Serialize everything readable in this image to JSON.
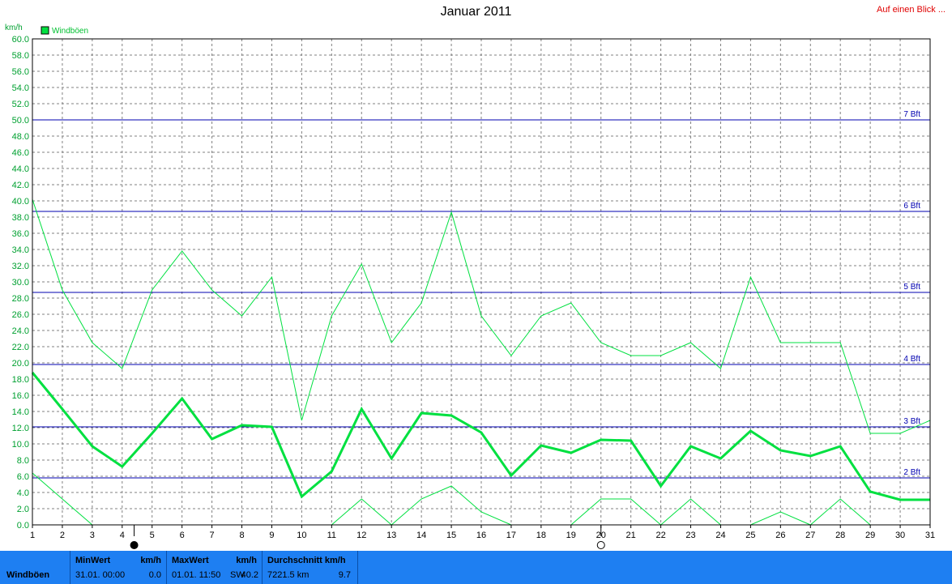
{
  "title": "Januar 2011",
  "quick_link": "Auf einen Blick ...",
  "colors": {
    "series": "#00e040",
    "beaufort": "#0000b0",
    "grid": "#808080",
    "footer_bg": "#1e7ff2"
  },
  "chart_data": {
    "type": "line",
    "title": "Januar 2011",
    "ylabel": "km/h",
    "xlim": [
      1,
      31
    ],
    "ylim": [
      0,
      60
    ],
    "yticks": [
      "0.0",
      "2.0",
      "4.0",
      "6.0",
      "8.0",
      "10.0",
      "12.0",
      "14.0",
      "16.0",
      "18.0",
      "20.0",
      "22.0",
      "24.0",
      "26.0",
      "28.0",
      "30.0",
      "32.0",
      "34.0",
      "36.0",
      "38.0",
      "40.0",
      "42.0",
      "44.0",
      "46.0",
      "48.0",
      "50.0",
      "52.0",
      "54.0",
      "56.0",
      "58.0",
      "60.0"
    ],
    "xticks": [
      "1",
      "2",
      "3",
      "4",
      "5",
      "6",
      "7",
      "8",
      "9",
      "10",
      "11",
      "12",
      "13",
      "14",
      "15",
      "16",
      "17",
      "18",
      "19",
      "20",
      "21",
      "22",
      "23",
      "24",
      "25",
      "26",
      "27",
      "28",
      "29",
      "30",
      "31"
    ],
    "legend": {
      "label": "Windböen",
      "placement": "top-left"
    },
    "x": [
      1,
      2,
      3,
      4,
      5,
      6,
      7,
      8,
      9,
      10,
      11,
      12,
      13,
      14,
      15,
      16,
      17,
      18,
      19,
      20,
      21,
      22,
      23,
      24,
      25,
      26,
      27,
      28,
      29,
      30,
      31
    ],
    "series": [
      {
        "role": "max",
        "values": [
          40.2,
          29,
          22.5,
          19.3,
          29,
          33.8,
          29,
          25.8,
          30.6,
          12.9,
          25.8,
          32.2,
          22.5,
          27.4,
          38.6,
          25.8,
          20.9,
          25.8,
          27.4,
          22.5,
          20.9,
          20.9,
          22.5,
          19.3,
          30.6,
          22.5,
          22.5,
          22.5,
          11.3,
          11.3,
          12.9
        ]
      },
      {
        "role": "average",
        "values": [
          18.8,
          14.3,
          9.7,
          7.2,
          11.3,
          15.6,
          10.6,
          12.3,
          12.1,
          3.5,
          6.6,
          14.3,
          8.2,
          13.8,
          13.5,
          11.4,
          6.1,
          9.8,
          8.9,
          10.5,
          10.4,
          4.8,
          9.7,
          8.2,
          11.6,
          9.2,
          8.5,
          9.7,
          4.1,
          3.1,
          3.1
        ]
      },
      {
        "role": "min",
        "values": [
          6.4,
          3.2,
          0,
          0,
          0,
          0,
          0,
          0,
          0,
          0,
          0,
          3.2,
          0,
          3.2,
          4.8,
          1.6,
          0,
          0,
          0,
          3.2,
          3.2,
          0,
          3.2,
          0,
          0,
          1.6,
          0,
          3.2,
          0,
          0,
          0
        ]
      }
    ],
    "reference_lines": [
      {
        "label": "2 Bft",
        "value": 5.8
      },
      {
        "label": "3 Bft",
        "value": 12.1
      },
      {
        "label": "4 Bft",
        "value": 19.8
      },
      {
        "label": "5 Bft",
        "value": 28.7
      },
      {
        "label": "6 Bft",
        "value": 38.7
      },
      {
        "label": "7 Bft",
        "value": 50.0
      }
    ],
    "moon_markers": [
      {
        "x": 4.4,
        "phase": "new"
      },
      {
        "x": 20.0,
        "phase": "full"
      }
    ],
    "grid": true
  },
  "footer": {
    "label": "Windböen",
    "min": {
      "header": "MinWert",
      "unit": "km/h",
      "date": "31.01.  00:00",
      "value": "0.0"
    },
    "max": {
      "header": "MaxWert",
      "unit": "km/h",
      "date": "01.01.  11:50",
      "dir": "SW",
      "value": "40.2"
    },
    "avg": {
      "header": "Durchschnitt km/h",
      "distance": "7221.5 km",
      "value": "9.7"
    }
  }
}
